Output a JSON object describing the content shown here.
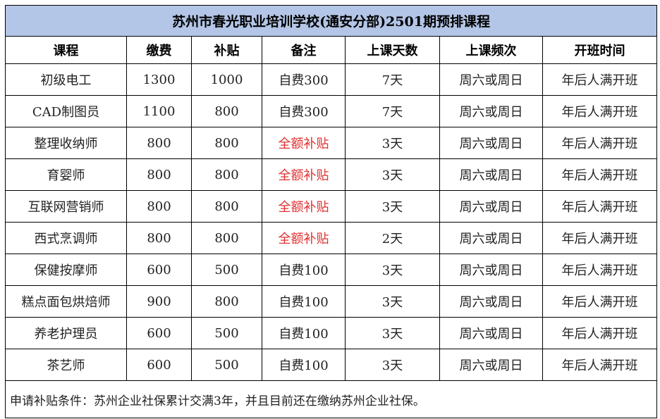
{
  "title": "苏州市春光职业培训学校(通安分部)2501期预排课程",
  "columns": [
    "课程",
    "缴费",
    "补贴",
    "备注",
    "上课天数",
    "上课频次",
    "开班时间"
  ],
  "rows": [
    {
      "course": "初级电工",
      "fee": "1300",
      "subsidy": "1000",
      "note": "自费300",
      "days": "7天",
      "freq": "周六或周日",
      "start": "年后人满开班"
    },
    {
      "course": "CAD制图员",
      "fee": "1100",
      "subsidy": "800",
      "note": "自费300",
      "days": "7天",
      "freq": "周六或周日",
      "start": "年后人满开班"
    },
    {
      "course": "整理收纳师",
      "fee": "800",
      "subsidy": "800",
      "note": "全额补贴",
      "days": "3天",
      "freq": "周六或周日",
      "start": "年后人满开班"
    },
    {
      "course": "育婴师",
      "fee": "800",
      "subsidy": "800",
      "note": "全额补贴",
      "days": "3天",
      "freq": "周六或周日",
      "start": "年后人满开班"
    },
    {
      "course": "互联网营销师",
      "fee": "800",
      "subsidy": "800",
      "note": "全额补贴",
      "days": "3天",
      "freq": "周六或周日",
      "start": "年后人满开班"
    },
    {
      "course": "西式烹调师",
      "fee": "800",
      "subsidy": "800",
      "note": "全额补贴",
      "days": "2天",
      "freq": "周六或周日",
      "start": "年后人满开班"
    },
    {
      "course": "保健按摩师",
      "fee": "600",
      "subsidy": "500",
      "note": "自费100",
      "days": "3天",
      "freq": "周六或周日",
      "start": "年后人满开班"
    },
    {
      "course": "糕点面包烘焙师",
      "fee": "900",
      "subsidy": "800",
      "note": "自费100",
      "days": "3天",
      "freq": "周六或周日",
      "start": "年后人满开班"
    },
    {
      "course": "养老护理员",
      "fee": "600",
      "subsidy": "500",
      "note": "自费100",
      "days": "3天",
      "freq": "周六或周日",
      "start": "年后人满开班"
    },
    {
      "course": "茶艺师",
      "fee": "600",
      "subsidy": "500",
      "note": "自费100",
      "days": "3天",
      "freq": "周六或周日",
      "start": "年后人满开班"
    }
  ],
  "footnote": "申请补贴条件：苏州企业社保累计交满3年，并且目前还在缴纳苏州企业社保。",
  "colors": {
    "title_bg": "#b4c6e7",
    "highlight_text": "#e03030",
    "border": "#000000"
  }
}
